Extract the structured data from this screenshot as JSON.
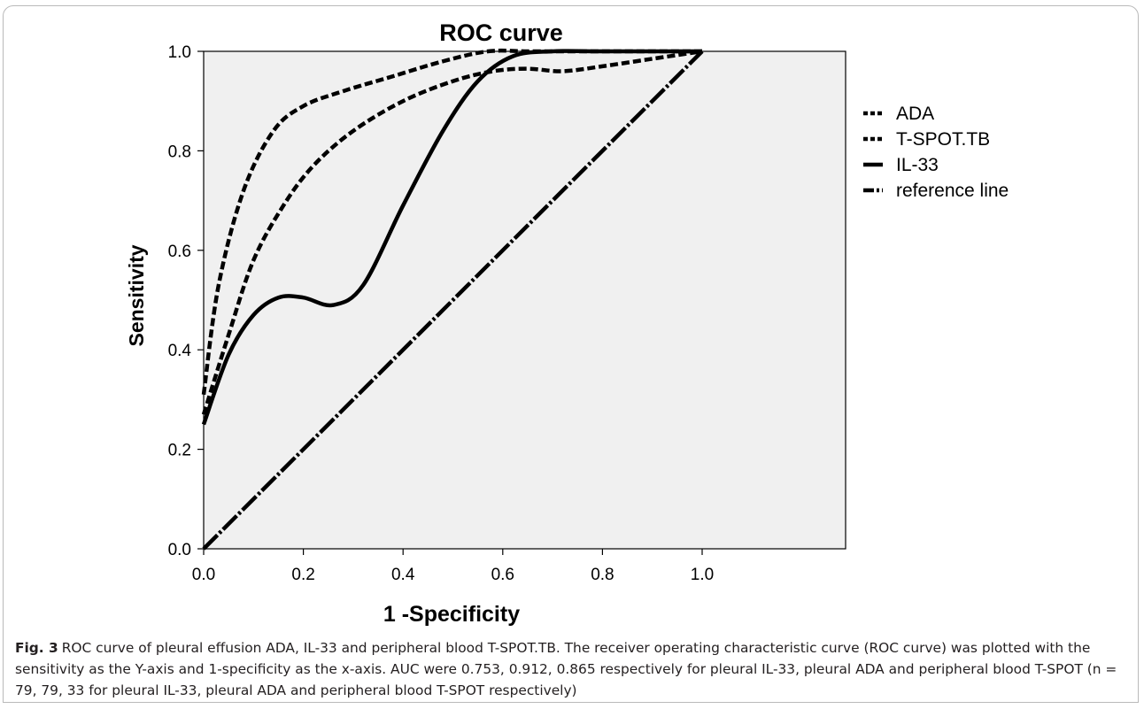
{
  "chart_data": {
    "type": "line",
    "title": "ROC curve",
    "xlabel": "1 -Specificity",
    "ylabel": "Sensitivity",
    "xlim": [
      0,
      1
    ],
    "ylim": [
      0,
      1
    ],
    "x_ticks": [
      "0.0",
      "0.2",
      "0.4",
      "0.6",
      "0.8",
      "1.0"
    ],
    "y_ticks": [
      "0.0",
      "0.2",
      "0.4",
      "0.6",
      "0.8",
      "1.0"
    ],
    "grid": false,
    "plot_background": "#f0f0f0",
    "legend_position": "right",
    "series": [
      {
        "name": "ADA",
        "style": "dashed",
        "x": [
          0,
          0.03,
          0.08,
          0.14,
          0.2,
          0.28,
          0.38,
          0.48,
          0.57,
          0.65,
          0.75,
          0.85,
          1.0
        ],
        "y": [
          0.31,
          0.53,
          0.72,
          0.84,
          0.89,
          0.92,
          0.95,
          0.98,
          1.0,
          1.0,
          1.0,
          1.0,
          1.0
        ]
      },
      {
        "name": "T-SPOT.TB",
        "style": "dashed",
        "x": [
          0,
          0.05,
          0.1,
          0.16,
          0.22,
          0.3,
          0.4,
          0.5,
          0.58,
          0.65,
          0.72,
          0.8,
          0.9,
          1.0
        ],
        "y": [
          0.27,
          0.43,
          0.58,
          0.69,
          0.77,
          0.84,
          0.9,
          0.94,
          0.96,
          0.965,
          0.96,
          0.97,
          0.985,
          1.0
        ]
      },
      {
        "name": "IL-33",
        "style": "solid",
        "x": [
          0,
          0.05,
          0.1,
          0.15,
          0.2,
          0.26,
          0.32,
          0.4,
          0.48,
          0.55,
          0.62,
          0.7,
          0.8,
          1.0
        ],
        "y": [
          0.25,
          0.39,
          0.47,
          0.505,
          0.505,
          0.49,
          0.53,
          0.69,
          0.84,
          0.94,
          0.99,
          1.0,
          1.0,
          1.0
        ]
      },
      {
        "name": "reference line",
        "style": "dashdot",
        "x": [
          0,
          1
        ],
        "y": [
          0,
          1
        ]
      }
    ]
  },
  "caption": {
    "label": "Fig. 3",
    "text": "ROC curve of pleural effusion ADA, IL-33 and peripheral blood T-SPOT.TB. The receiver operating characteristic curve (ROC curve) was plotted with the sensitivity as the Y-axis and 1-specificity as the x-axis. AUC were 0.753, 0.912, 0.865 respectively for pleural IL-33, pleural ADA and peripheral blood T-SPOT (n = 79, 79, 33 for pleural IL-33, pleural ADA and peripheral blood T-SPOT respectively)"
  }
}
